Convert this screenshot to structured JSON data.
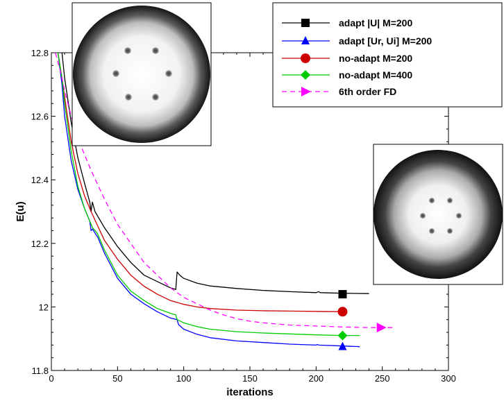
{
  "chart_data": {
    "type": "line",
    "xlabel": "iterations",
    "ylabel": "E(u)",
    "xlim": [
      0,
      300
    ],
    "ylim": [
      11.8,
      12.8
    ],
    "x_ticks": [
      0,
      50,
      100,
      150,
      200,
      250,
      300
    ],
    "y_ticks": [
      11.8,
      12,
      12.2,
      12.4,
      12.6,
      12.8
    ],
    "x_tick_labels": [
      "0",
      "50",
      "100",
      "150",
      "200",
      "250",
      "300"
    ],
    "y_tick_labels": [
      "11.8",
      "12",
      "12.2",
      "12.4",
      "12.6",
      "12.8"
    ],
    "grid": false,
    "legend_position": "top-right",
    "series": [
      {
        "name": "adapt |U|  M=200",
        "color": "#000000",
        "dash": "solid",
        "marker": "square",
        "marker_point": [
          220,
          12.04
        ],
        "points": [
          [
            8,
            12.8
          ],
          [
            10,
            12.72
          ],
          [
            15,
            12.58
          ],
          [
            20,
            12.47
          ],
          [
            25,
            12.39
          ],
          [
            29,
            12.33
          ],
          [
            30,
            12.3
          ],
          [
            31,
            12.33
          ],
          [
            33,
            12.3
          ],
          [
            40,
            12.25
          ],
          [
            50,
            12.19
          ],
          [
            60,
            12.14
          ],
          [
            70,
            12.1
          ],
          [
            80,
            12.08
          ],
          [
            90,
            12.06
          ],
          [
            94,
            12.055
          ],
          [
            95,
            12.11
          ],
          [
            97,
            12.1
          ],
          [
            100,
            12.09
          ],
          [
            110,
            12.075
          ],
          [
            120,
            12.066
          ],
          [
            140,
            12.058
          ],
          [
            160,
            12.052
          ],
          [
            180,
            12.048
          ],
          [
            200,
            12.045
          ],
          [
            202,
            12.048
          ],
          [
            203,
            12.045
          ],
          [
            220,
            12.043
          ],
          [
            240,
            12.042
          ]
        ]
      },
      {
        "name": "adapt [Ur, Ui]  M=200",
        "color": "#0000ff",
        "dash": "solid",
        "marker": "triangle",
        "marker_point": [
          220,
          11.875
        ],
        "points": [
          [
            5,
            12.8
          ],
          [
            8,
            12.7
          ],
          [
            10,
            12.6
          ],
          [
            15,
            12.46
          ],
          [
            20,
            12.37
          ],
          [
            25,
            12.31
          ],
          [
            29,
            12.27
          ],
          [
            30,
            12.24
          ],
          [
            31,
            12.245
          ],
          [
            35,
            12.22
          ],
          [
            40,
            12.17
          ],
          [
            50,
            12.09
          ],
          [
            60,
            12.04
          ],
          [
            70,
            12.01
          ],
          [
            80,
            11.985
          ],
          [
            90,
            11.965
          ],
          [
            95,
            11.96
          ],
          [
            96,
            11.945
          ],
          [
            100,
            11.93
          ],
          [
            110,
            11.914
          ],
          [
            120,
            11.903
          ],
          [
            140,
            11.893
          ],
          [
            160,
            11.888
          ],
          [
            180,
            11.883
          ],
          [
            200,
            11.88
          ],
          [
            201,
            11.882
          ],
          [
            202,
            11.88
          ],
          [
            220,
            11.877
          ],
          [
            233,
            11.875
          ]
        ]
      },
      {
        "name": "no-adapt  M=200",
        "color": "#cc0000",
        "dash": "solid",
        "marker": "circle",
        "marker_point": [
          220,
          11.985
        ],
        "points": [
          [
            5,
            12.8
          ],
          [
            8,
            12.72
          ],
          [
            10,
            12.66
          ],
          [
            15,
            12.52
          ],
          [
            20,
            12.42
          ],
          [
            25,
            12.35
          ],
          [
            30,
            12.3
          ],
          [
            40,
            12.21
          ],
          [
            50,
            12.15
          ],
          [
            60,
            12.1
          ],
          [
            70,
            12.065
          ],
          [
            80,
            12.04
          ],
          [
            90,
            12.02
          ],
          [
            100,
            12.008
          ],
          [
            110,
            12.0
          ],
          [
            120,
            11.995
          ],
          [
            140,
            11.99
          ],
          [
            160,
            11.988
          ],
          [
            180,
            11.987
          ],
          [
            200,
            11.986
          ],
          [
            220,
            11.985
          ]
        ]
      },
      {
        "name": "no-adapt  M=400",
        "color": "#00cc00",
        "dash": "solid",
        "marker": "diamond",
        "marker_point": [
          220,
          11.91
        ],
        "points": [
          [
            5,
            12.8
          ],
          [
            8,
            12.72
          ],
          [
            10,
            12.64
          ],
          [
            15,
            12.49
          ],
          [
            20,
            12.38
          ],
          [
            25,
            12.31
          ],
          [
            29,
            12.27
          ],
          [
            30,
            12.26
          ],
          [
            31,
            12.25
          ],
          [
            35,
            12.23
          ],
          [
            40,
            12.18
          ],
          [
            50,
            12.1
          ],
          [
            60,
            12.05
          ],
          [
            70,
            12.02
          ],
          [
            80,
            11.995
          ],
          [
            90,
            11.98
          ],
          [
            94,
            11.975
          ],
          [
            95,
            11.96
          ],
          [
            100,
            11.95
          ],
          [
            110,
            11.938
          ],
          [
            120,
            11.93
          ],
          [
            140,
            11.922
          ],
          [
            160,
            11.918
          ],
          [
            180,
            11.915
          ],
          [
            200,
            11.912
          ],
          [
            220,
            11.91
          ],
          [
            233,
            11.91
          ]
        ]
      },
      {
        "name": "6th order FD",
        "color": "#ff00ff",
        "dash": "dashed",
        "marker": "triangle-right",
        "marker_point": [
          249,
          11.935
        ],
        "points": [
          [
            3,
            12.8
          ],
          [
            7,
            12.74
          ],
          [
            10,
            12.68
          ],
          [
            15,
            12.6
          ],
          [
            20,
            12.53
          ],
          [
            30,
            12.43
          ],
          [
            40,
            12.34
          ],
          [
            50,
            12.26
          ],
          [
            60,
            12.2
          ],
          [
            70,
            12.14
          ],
          [
            80,
            12.1
          ],
          [
            90,
            12.06
          ],
          [
            100,
            12.03
          ],
          [
            110,
            12.01
          ],
          [
            120,
            11.99
          ],
          [
            130,
            11.975
          ],
          [
            140,
            11.963
          ],
          [
            150,
            11.955
          ],
          [
            160,
            11.95
          ],
          [
            180,
            11.943
          ],
          [
            200,
            11.94
          ],
          [
            220,
            11.937
          ],
          [
            240,
            11.935
          ],
          [
            258,
            11.935
          ]
        ]
      }
    ]
  }
}
